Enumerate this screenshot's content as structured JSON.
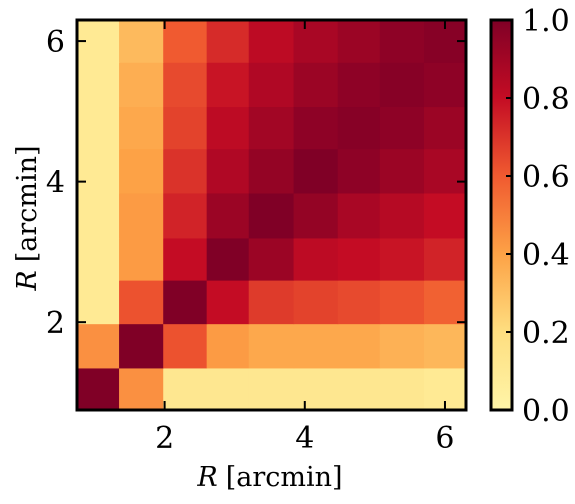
{
  "chart_data": {
    "type": "heatmap",
    "title": "",
    "xlabel": "R [arcmin]",
    "ylabel": "R [arcmin]",
    "label_symbol": "R",
    "label_unit": "[arcmin]",
    "xlim": [
      0.75,
      6.3
    ],
    "ylim": [
      0.75,
      6.3
    ],
    "x_ticks": [
      2,
      4,
      6
    ],
    "y_ticks": [
      2,
      4,
      6
    ],
    "bins": [
      {
        "lo": 0.75,
        "hi": 1.35
      },
      {
        "lo": 1.35,
        "hi": 1.98
      },
      {
        "lo": 1.98,
        "hi": 2.6
      },
      {
        "lo": 2.6,
        "hi": 3.2
      },
      {
        "lo": 3.2,
        "hi": 3.84
      },
      {
        "lo": 3.84,
        "hi": 4.47
      },
      {
        "lo": 4.47,
        "hi": 5.07
      },
      {
        "lo": 5.07,
        "hi": 5.7
      },
      {
        "lo": 5.7,
        "hi": 6.3
      }
    ],
    "values": [
      [
        1.0,
        0.45,
        0.12,
        0.12,
        0.12,
        0.12,
        0.12,
        0.12,
        0.1
      ],
      [
        0.45,
        1.0,
        0.62,
        0.42,
        0.38,
        0.38,
        0.38,
        0.35,
        0.33
      ],
      [
        0.1,
        0.62,
        1.0,
        0.8,
        0.68,
        0.66,
        0.64,
        0.62,
        0.58
      ],
      [
        0.1,
        0.42,
        0.8,
        1.0,
        0.92,
        0.82,
        0.8,
        0.78,
        0.74
      ],
      [
        0.1,
        0.42,
        0.74,
        0.92,
        1.0,
        0.94,
        0.88,
        0.84,
        0.8
      ],
      [
        0.1,
        0.4,
        0.7,
        0.86,
        0.94,
        1.0,
        0.96,
        0.92,
        0.88
      ],
      [
        0.1,
        0.38,
        0.66,
        0.82,
        0.9,
        0.96,
        0.98,
        0.96,
        0.92
      ],
      [
        0.1,
        0.36,
        0.64,
        0.78,
        0.86,
        0.92,
        0.96,
        0.98,
        0.96
      ],
      [
        0.1,
        0.32,
        0.6,
        0.72,
        0.82,
        0.88,
        0.92,
        0.96,
        0.98
      ]
    ],
    "colorbar": {
      "colormap": "YlOrRd",
      "min": 0.0,
      "max": 1.0,
      "ticks": [
        "0.0",
        "0.2",
        "0.4",
        "0.6",
        "0.8",
        "1.0"
      ]
    }
  }
}
